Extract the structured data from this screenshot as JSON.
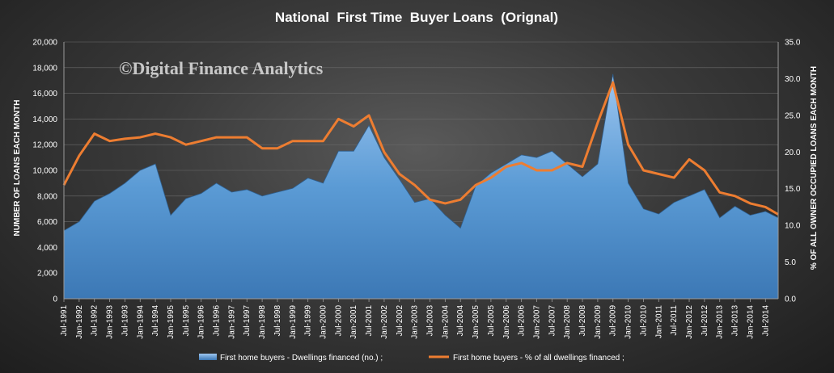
{
  "chart_data": {
    "type": "area",
    "title": "National  First Time  Buyer Loans  (Orignal)",
    "watermark": "©Digital Finance Analytics",
    "ylabel": "NUMBER OF LOANS EACH MONTH",
    "y2label": "% OF ALL OWNER OCCUPIED LOANS EACH MONTH",
    "ylim": [
      0,
      20000
    ],
    "y2lim": [
      0,
      35
    ],
    "yticks": [
      "0",
      "2,000",
      "4,000",
      "6,000",
      "8,000",
      "10,000",
      "12,000",
      "14,000",
      "16,000",
      "18,000",
      "20,000"
    ],
    "y2ticks": [
      "0.0",
      "5.0",
      "10.0",
      "15.0",
      "20.0",
      "25.0",
      "30.0",
      "35.0"
    ],
    "xticks": [
      "Jul-1991",
      "Jan-1992",
      "Jul-1992",
      "Jan-1993",
      "Jul-1993",
      "Jan-1994",
      "Jul-1994",
      "Jan-1995",
      "Jul-1995",
      "Jan-1996",
      "Jul-1996",
      "Jan-1997",
      "Jul-1997",
      "Jan-1998",
      "Jul-1998",
      "Jan-1999",
      "Jul-1999",
      "Jan-2000",
      "Jul-2000",
      "Jan-2001",
      "Jul-2001",
      "Jan-2002",
      "Jul-2002",
      "Jan-2003",
      "Jul-2003",
      "Jan-2004",
      "Jul-2004",
      "Jan-2005",
      "Jul-2005",
      "Jan-2006",
      "Jul-2006",
      "Jan-2007",
      "Jul-2007",
      "Jan-2008",
      "Jul-2008",
      "Jan-2009",
      "Jul-2009",
      "Jan-2010",
      "Jul-2010",
      "Jan-2011",
      "Jul-2011",
      "Jan-2012",
      "Jul-2012",
      "Jan-2013",
      "Jul-2013",
      "Jan-2014",
      "Jul-2014"
    ],
    "legend_placement": "bottom",
    "colors": {
      "area": "#5b9bd5",
      "line": "#ed7d31",
      "background": "#3a3a3a"
    },
    "series": [
      {
        "name": "First home buyers - Dwellings financed (no.) ;",
        "type": "area",
        "axis": "left",
        "x": [
          "Jul-1991",
          "Jan-1992",
          "Jul-1992",
          "Jan-1993",
          "Jul-1993",
          "Jan-1994",
          "Jul-1994",
          "Jan-1995",
          "Jul-1995",
          "Jan-1996",
          "Jul-1996",
          "Jan-1997",
          "Jul-1997",
          "Jan-1998",
          "Jul-1998",
          "Jan-1999",
          "Jul-1999",
          "Jan-2000",
          "Jul-2000",
          "Jan-2001",
          "Jul-2001",
          "Jan-2002",
          "Jul-2002",
          "Jan-2003",
          "Jul-2003",
          "Jan-2004",
          "Jul-2004",
          "Jan-2005",
          "Jul-2005",
          "Jan-2006",
          "Jul-2006",
          "Jan-2007",
          "Jul-2007",
          "Jan-2008",
          "Jul-2008",
          "Jan-2009",
          "Jul-2009",
          "Jan-2010",
          "Jul-2010",
          "Jan-2011",
          "Jul-2011",
          "Jan-2012",
          "Jul-2012",
          "Jan-2013",
          "Jul-2013",
          "Jan-2014",
          "Jul-2014",
          "Dec-2014"
        ],
        "values": [
          5300,
          6000,
          7600,
          8200,
          9000,
          10000,
          10500,
          6500,
          7800,
          8200,
          9000,
          8300,
          8500,
          8000,
          8300,
          8600,
          9400,
          9000,
          11500,
          11500,
          13500,
          11000,
          9300,
          7500,
          7800,
          6500,
          5500,
          8800,
          9800,
          10500,
          11200,
          11000,
          11500,
          10500,
          9500,
          10500,
          17500,
          9000,
          7000,
          6600,
          7500,
          8000,
          8500,
          6300,
          7200,
          6500,
          6800,
          6300
        ]
      },
      {
        "name": "First home buyers - % of all dwellings financed ;",
        "type": "line",
        "axis": "right",
        "x": [
          "Jul-1991",
          "Jan-1992",
          "Jul-1992",
          "Jan-1993",
          "Jul-1993",
          "Jan-1994",
          "Jul-1994",
          "Jan-1995",
          "Jul-1995",
          "Jan-1996",
          "Jul-1996",
          "Jan-1997",
          "Jul-1997",
          "Jan-1998",
          "Jul-1998",
          "Jan-1999",
          "Jul-1999",
          "Jan-2000",
          "Jul-2000",
          "Jan-2001",
          "Jul-2001",
          "Jan-2002",
          "Jul-2002",
          "Jan-2003",
          "Jul-2003",
          "Jan-2004",
          "Jul-2004",
          "Jan-2005",
          "Jul-2005",
          "Jan-2006",
          "Jul-2006",
          "Jan-2007",
          "Jul-2007",
          "Jan-2008",
          "Jul-2008",
          "Jan-2009",
          "Jul-2009",
          "Jan-2010",
          "Jul-2010",
          "Jan-2011",
          "Jul-2011",
          "Jan-2012",
          "Jul-2012",
          "Jan-2013",
          "Jul-2013",
          "Jan-2014",
          "Jul-2014",
          "Dec-2014"
        ],
        "values": [
          15.5,
          19.5,
          22.5,
          21.5,
          21.8,
          22.0,
          22.5,
          22.0,
          21.0,
          21.5,
          22.0,
          22.0,
          22.0,
          20.5,
          20.5,
          21.5,
          21.5,
          21.5,
          24.5,
          23.5,
          25.0,
          20.0,
          17.0,
          15.5,
          13.5,
          13.0,
          13.5,
          15.5,
          16.5,
          18.0,
          18.5,
          17.5,
          17.5,
          18.5,
          18.0,
          24.0,
          29.5,
          21.0,
          17.5,
          17.0,
          16.5,
          19.0,
          17.5,
          14.5,
          14.0,
          13.0,
          12.5,
          11.5
        ]
      }
    ]
  }
}
